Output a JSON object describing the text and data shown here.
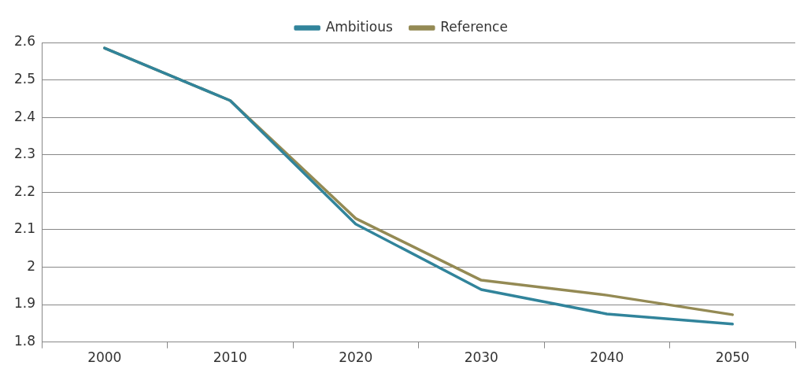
{
  "chart_data": {
    "type": "line",
    "categories": [
      "2000",
      "2010",
      "2020",
      "2030",
      "2040",
      "2050"
    ],
    "series": [
      {
        "name": "Ambitious",
        "color": "#31849b",
        "values": [
          2.585,
          2.445,
          2.115,
          1.94,
          1.875,
          1.848
        ]
      },
      {
        "name": "Reference",
        "color": "#948a54",
        "values": [
          2.585,
          2.445,
          2.13,
          1.965,
          1.925,
          1.873
        ]
      }
    ],
    "ylim": [
      1.8,
      2.6
    ],
    "yticks": [
      1.8,
      1.9,
      2,
      2.1,
      2.2,
      2.3,
      2.4,
      2.5,
      2.6
    ],
    "grid": "y",
    "legend": "top",
    "marker": "none",
    "line_style": "solid"
  }
}
